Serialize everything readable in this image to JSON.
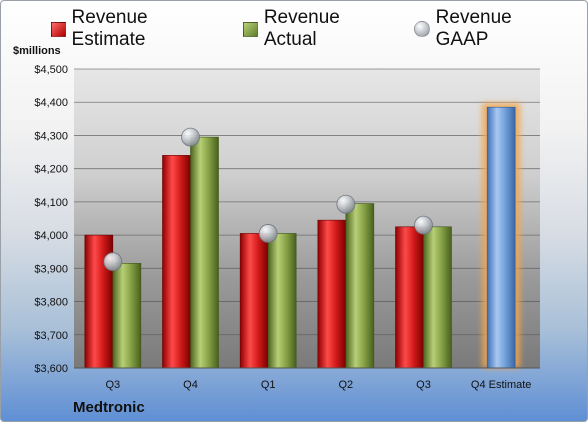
{
  "company": "Medtronic",
  "unit_label": "$millions",
  "legend": {
    "estimate": "Revenue Estimate",
    "actual": "Revenue Actual",
    "gaap": "Revenue GAAP"
  },
  "colors": {
    "estimate": "#c81414",
    "actual": "#7f9a3e",
    "gaap": "#b9bec5",
    "forecast": "#6f9fd8",
    "forecast_glow": "#f4a64b"
  },
  "chart_data": {
    "type": "bar",
    "title": "",
    "xlabel": "",
    "ylabel": "$millions",
    "ylim": [
      3600,
      4500
    ],
    "yticks": [
      3600,
      3700,
      3800,
      3900,
      4000,
      4100,
      4200,
      4300,
      4400,
      4500
    ],
    "ytick_labels": [
      "$3,600",
      "$3,700",
      "$3,800",
      "$3,900",
      "$4,000",
      "$4,100",
      "$4,200",
      "$4,300",
      "$4,400",
      "$4,500"
    ],
    "categories": [
      "Q3",
      "Q4",
      "Q1",
      "Q2",
      "Q3",
      "Q4 Estimate"
    ],
    "grid": true,
    "legend_position": "top",
    "series": [
      {
        "name": "Revenue Estimate",
        "type": "bar",
        "values": [
          4000,
          4240,
          4005,
          4045,
          4025,
          null
        ]
      },
      {
        "name": "Revenue Actual",
        "type": "bar",
        "values": [
          3915,
          4295,
          4005,
          4095,
          4025,
          null
        ]
      },
      {
        "name": "Revenue GAAP",
        "type": "marker",
        "values": [
          3920,
          4295,
          4005,
          4093,
          4030,
          null
        ]
      },
      {
        "name": "Q4 Estimate",
        "type": "bar",
        "values": [
          null,
          null,
          null,
          null,
          null,
          4385
        ]
      }
    ]
  }
}
